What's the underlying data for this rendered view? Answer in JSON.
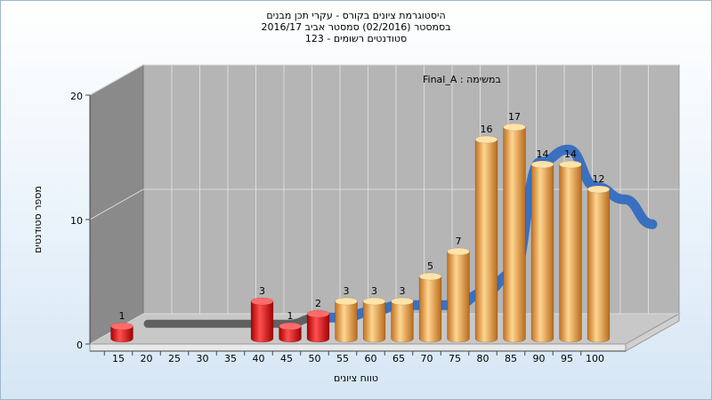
{
  "chart_data": {
    "type": "bar",
    "title": [
      "היסטוגרמת ציונים בקורס - עקרי תכן מבנים",
      "בסמסטר (02/2016) סמסטר אביב 2016/17",
      "סטודנטים רשומים - 123"
    ],
    "annotation": "במשימה : Final_A",
    "xlabel": "טווח ציונים",
    "ylabel": "מספר סטודנטים",
    "ylim": [
      0,
      20
    ],
    "y_ticks": [
      0,
      10,
      20
    ],
    "x_ticks": [
      "15",
      "20",
      "25",
      "30",
      "35",
      "40",
      "45",
      "50",
      "55",
      "60",
      "65",
      "70",
      "75",
      "80",
      "85",
      "90",
      "95",
      "100"
    ],
    "bars": [
      {
        "x": 15,
        "value": 1,
        "color": "red"
      },
      {
        "x": 40,
        "value": 3,
        "color": "red"
      },
      {
        "x": 45,
        "value": 1,
        "color": "red"
      },
      {
        "x": 50,
        "value": 2,
        "color": "red"
      },
      {
        "x": 55,
        "value": 3,
        "color": "orange"
      },
      {
        "x": 60,
        "value": 3,
        "color": "orange"
      },
      {
        "x": 65,
        "value": 3,
        "color": "orange"
      },
      {
        "x": 70,
        "value": 5,
        "color": "orange"
      },
      {
        "x": 75,
        "value": 7,
        "color": "orange"
      },
      {
        "x": 80,
        "value": 16,
        "color": "orange"
      },
      {
        "x": 85,
        "value": 17,
        "color": "orange"
      },
      {
        "x": 90,
        "value": 14,
        "color": "orange"
      },
      {
        "x": 95,
        "value": 14,
        "color": "orange"
      },
      {
        "x": 100,
        "value": 12,
        "color": "orange"
      }
    ],
    "curve": {
      "x": [
        15,
        20,
        25,
        30,
        35,
        40,
        45,
        50,
        55,
        60,
        65,
        70,
        75,
        80,
        85,
        90,
        95,
        100,
        105
      ],
      "y": [
        0,
        0,
        0,
        0,
        0,
        0,
        0.5,
        0.5,
        1,
        1.5,
        1.5,
        1.5,
        2.5,
        4,
        13,
        14,
        11,
        10,
        8
      ]
    },
    "colors": {
      "red": "#e01818",
      "orange": "#f0a640",
      "curve": "#3a70c0",
      "curve_flat": "#606060",
      "back_wall": "#b5b5b5",
      "side_wall": "#8a8a8a",
      "floor": "#c8c8c8",
      "grid": "#dcdcdc"
    },
    "grid": true
  }
}
